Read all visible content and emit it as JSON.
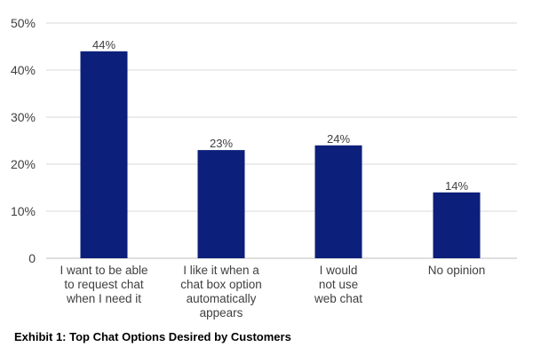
{
  "caption": "Exhibit 1: Top Chat Options Desired by Customers",
  "colors": {
    "bar": "#0c1f7a",
    "grid": "#d9d9d9",
    "axis": "#bfbfbf"
  },
  "chart_data": {
    "type": "bar",
    "categories": [
      "I want to be able\nto request chat\nwhen I need it",
      "I like it when a\nchat box option\nautomatically\nappears",
      "I would\nnot use\nweb chat",
      "No opinion"
    ],
    "values": [
      44,
      23,
      24,
      14
    ],
    "value_labels": [
      "44%",
      "23%",
      "24%",
      "14%"
    ],
    "yticks": [
      0,
      10,
      20,
      30,
      40,
      50
    ],
    "ytick_labels": [
      "0",
      "10%",
      "20%",
      "30%",
      "40%",
      "50%"
    ],
    "ylim": [
      0,
      50
    ],
    "grid": true,
    "title": "",
    "xlabel": "",
    "ylabel": ""
  }
}
